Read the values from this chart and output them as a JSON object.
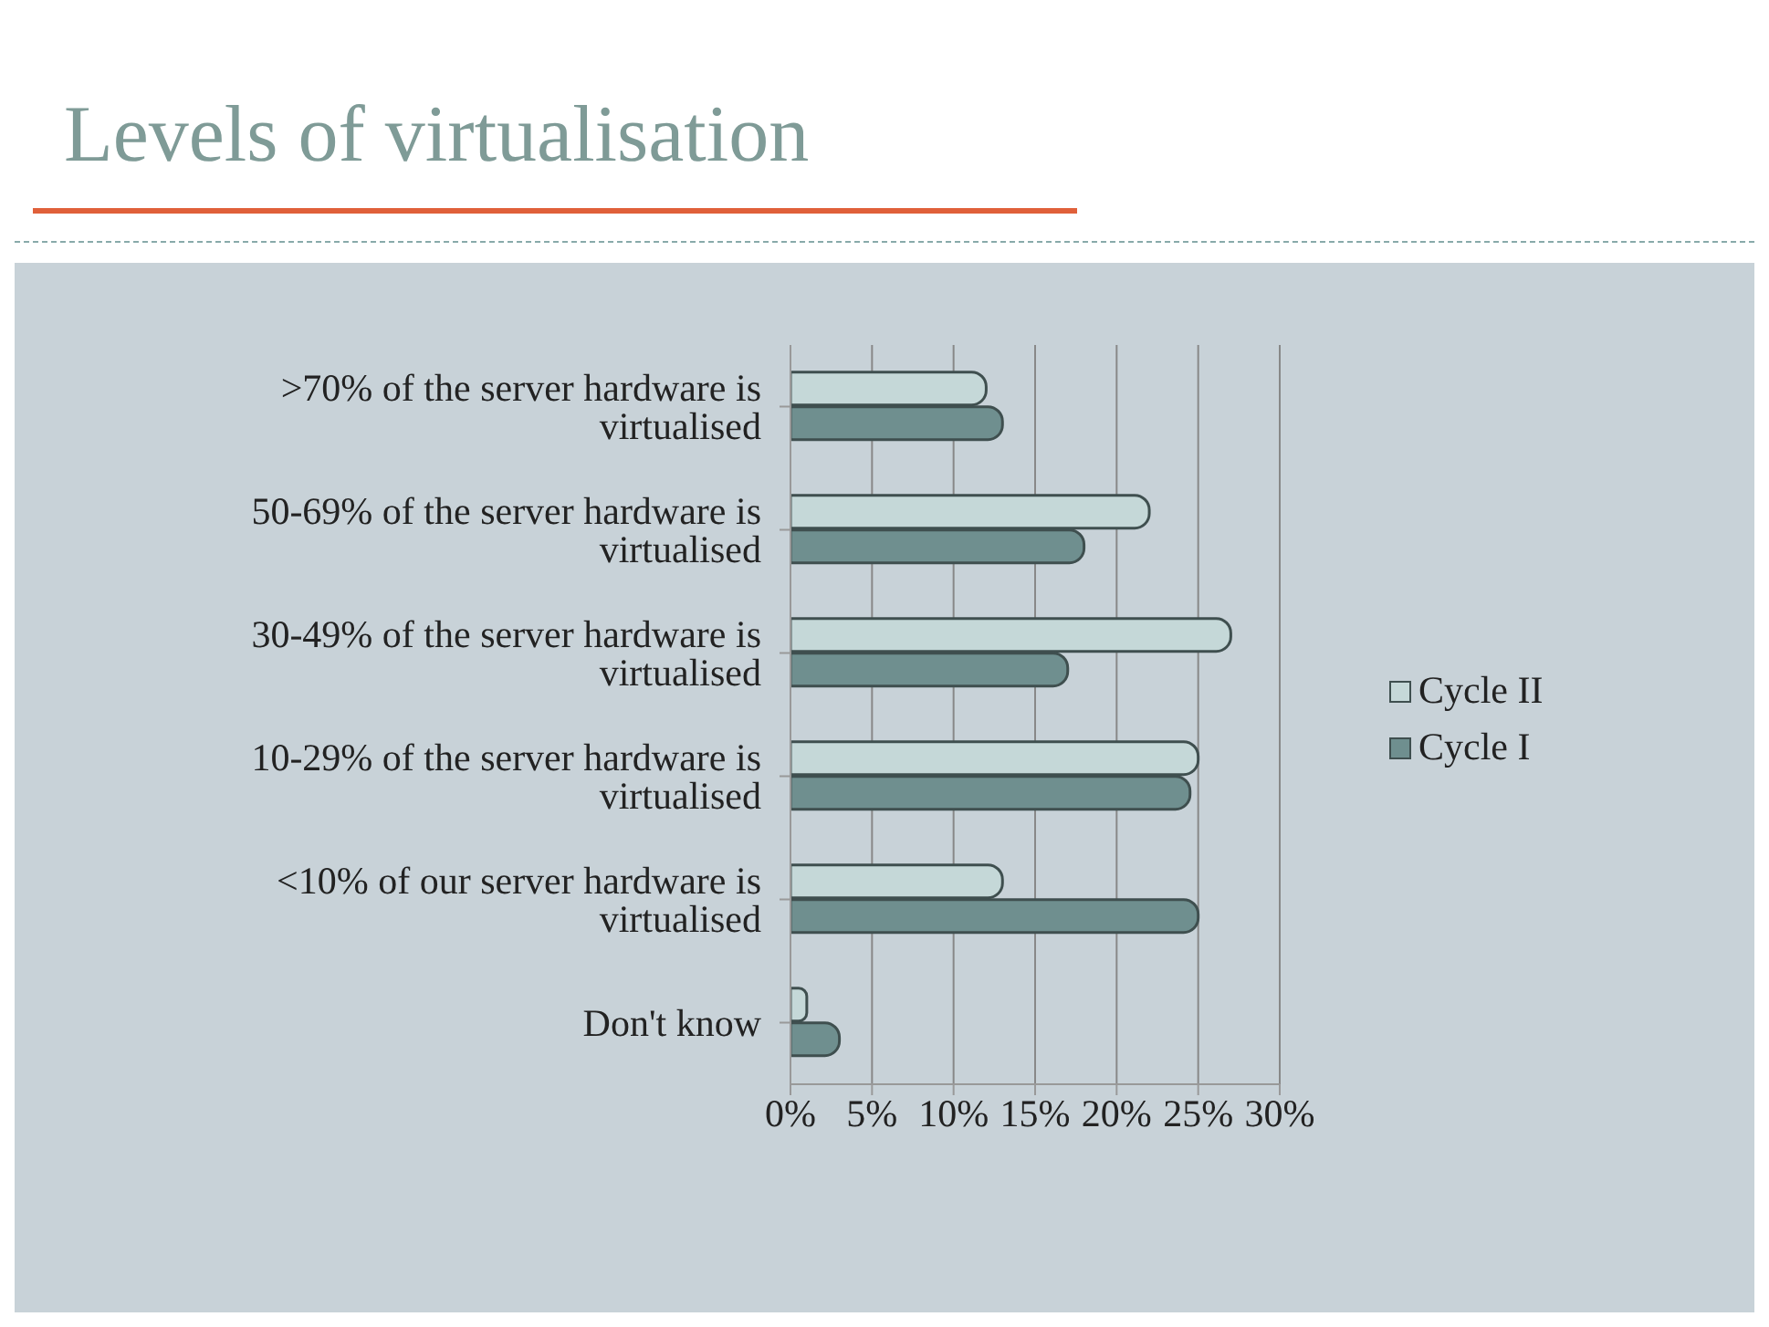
{
  "chart_data": {
    "type": "bar",
    "title": "Levels of virtualisation",
    "orientation": "horizontal",
    "categories": [
      ">70% of the server hardware is virtualised",
      "50-69% of the server hardware is virtualised",
      "30-49% of the server hardware is virtualised",
      "10-29% of the server hardware is virtualised",
      "<10% of our server hardware is virtualised",
      "Don't know"
    ],
    "series": [
      {
        "name": "Cycle II",
        "color": "#c5d8d8",
        "values": [
          12,
          22,
          27,
          25,
          13,
          1
        ]
      },
      {
        "name": "Cycle I",
        "color": "#6f8f8f",
        "values": [
          13,
          18,
          17,
          24.5,
          25,
          3
        ]
      }
    ],
    "xlim": [
      0,
      30
    ],
    "xticks": [
      {
        "value": 0,
        "label": "0%"
      },
      {
        "value": 5,
        "label": "5%"
      },
      {
        "value": 10,
        "label": "10%"
      },
      {
        "value": 15,
        "label": "15%"
      },
      {
        "value": 20,
        "label": "20%"
      },
      {
        "value": 25,
        "label": "25%"
      },
      {
        "value": 30,
        "label": "30%"
      }
    ],
    "grid": "x",
    "legend": "right"
  }
}
